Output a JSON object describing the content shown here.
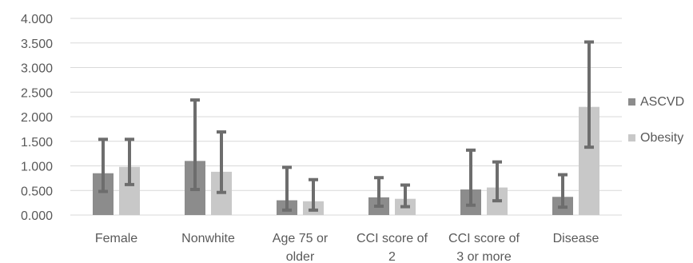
{
  "chart_data": {
    "type": "bar",
    "categories": [
      [
        "Female"
      ],
      [
        "Nonwhite"
      ],
      [
        "Age 75 or",
        "older"
      ],
      [
        "CCI score of",
        "2"
      ],
      [
        "CCI score of",
        "3 or more"
      ],
      [
        "Disease"
      ]
    ],
    "series": [
      {
        "name": "ASCVD",
        "color": "#8c8c8c",
        "values": [
          0.85,
          1.1,
          0.3,
          0.36,
          0.52,
          0.37
        ],
        "error_low": [
          0.48,
          0.52,
          0.1,
          0.18,
          0.2,
          0.16
        ],
        "error_high": [
          1.54,
          2.34,
          0.97,
          0.76,
          1.32,
          0.82
        ]
      },
      {
        "name": "Obesity",
        "color": "#c8c8c8",
        "values": [
          0.98,
          0.88,
          0.28,
          0.33,
          0.56,
          2.2
        ],
        "error_low": [
          0.62,
          0.46,
          0.1,
          0.17,
          0.29,
          1.38
        ],
        "error_high": [
          1.54,
          1.69,
          0.72,
          0.61,
          1.08,
          3.52
        ]
      }
    ],
    "error_bar_color": "#6d6d6d",
    "ylim": [
      0,
      4
    ],
    "y_ticks": [
      "0.000",
      "0.500",
      "1.000",
      "1.500",
      "2.000",
      "2.500",
      "3.000",
      "3.500",
      "4.000"
    ],
    "grid": true,
    "legend_position": "right"
  }
}
